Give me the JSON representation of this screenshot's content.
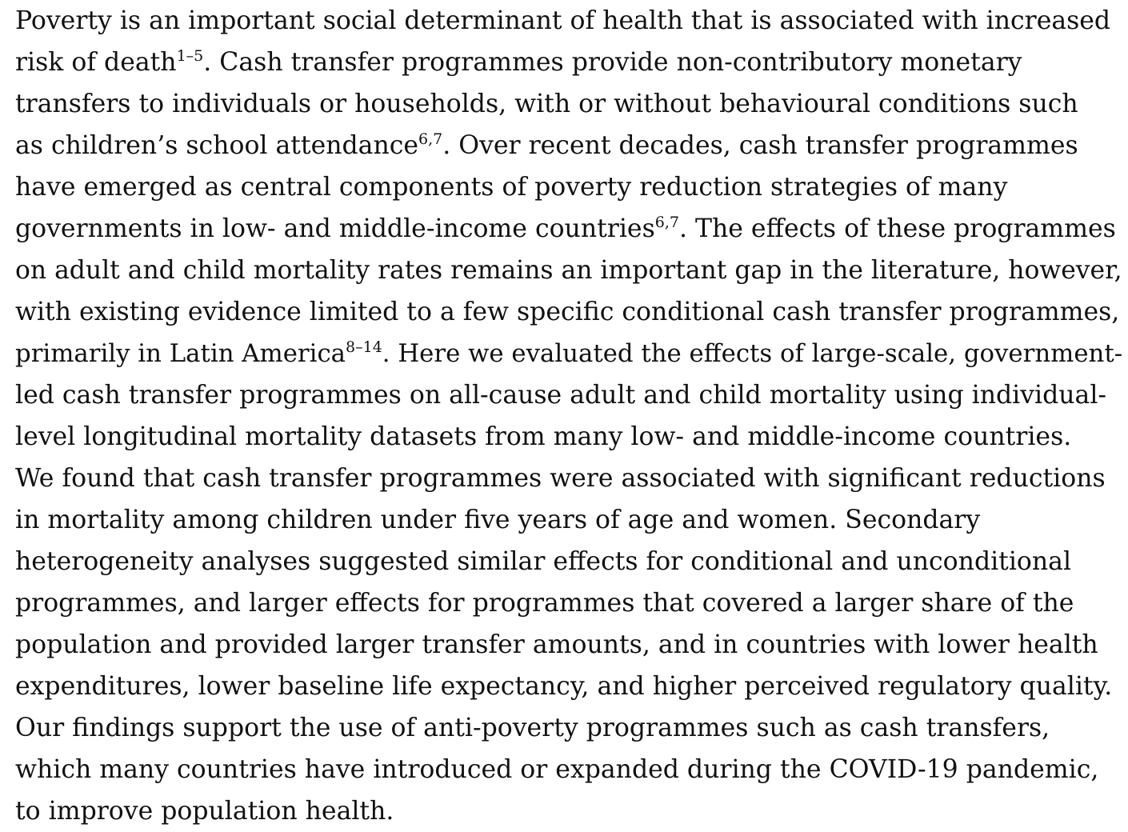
{
  "abstract": {
    "lines": [
      [
        {
          "t": "Poverty is an important social determinant of health that is associated with increased"
        }
      ],
      [
        {
          "t": "risk of death"
        },
        {
          "sup": "1–5"
        },
        {
          "t": ". Cash transfer programmes provide non-contributory monetary"
        }
      ],
      [
        {
          "t": "transfers to individuals or households, with or without behavioural conditions such"
        }
      ],
      [
        {
          "t": "as children’s school attendance"
        },
        {
          "sup": "6,7"
        },
        {
          "t": ". Over recent decades, cash transfer programmes"
        }
      ],
      [
        {
          "t": "have emerged as central components of poverty reduction strategies of many"
        }
      ],
      [
        {
          "t": "governments in low- and middle-income countries"
        },
        {
          "sup": "6,7"
        },
        {
          "t": ". The effects of these programmes"
        }
      ],
      [
        {
          "t": "on adult and child mortality rates remains an important gap in the literature, however,"
        }
      ],
      [
        {
          "t": "with existing evidence limited to a few specific conditional cash transfer programmes,"
        }
      ],
      [
        {
          "t": "primarily in Latin America"
        },
        {
          "sup": "8–14"
        },
        {
          "t": ". Here we evaluated the effects of large-scale, government-"
        }
      ],
      [
        {
          "t": "led cash transfer programmes on all-cause adult and child mortality using individual-"
        }
      ],
      [
        {
          "t": "level longitudinal mortality datasets from many low- and middle-income countries."
        }
      ],
      [
        {
          "t": "We found that cash transfer programmes were associated with significant reductions"
        }
      ],
      [
        {
          "t": "in mortality among children under five years of age and women. Secondary"
        }
      ],
      [
        {
          "t": "heterogeneity analyses suggested similar effects for conditional and unconditional"
        }
      ],
      [
        {
          "t": "programmes, and larger effects for programmes that covered a larger share of the"
        }
      ],
      [
        {
          "t": "population and provided larger transfer amounts, and in countries with lower health"
        }
      ],
      [
        {
          "t": "expenditures, lower baseline life expectancy, and higher perceived regulatory quality."
        }
      ],
      [
        {
          "t": "Our findings support the use of anti-poverty programmes such as cash transfers,"
        }
      ],
      [
        {
          "t": "which many countries have introduced or expanded during the COVID-19 pandemic,"
        }
      ],
      [
        {
          "t": "to improve population health."
        }
      ]
    ]
  }
}
